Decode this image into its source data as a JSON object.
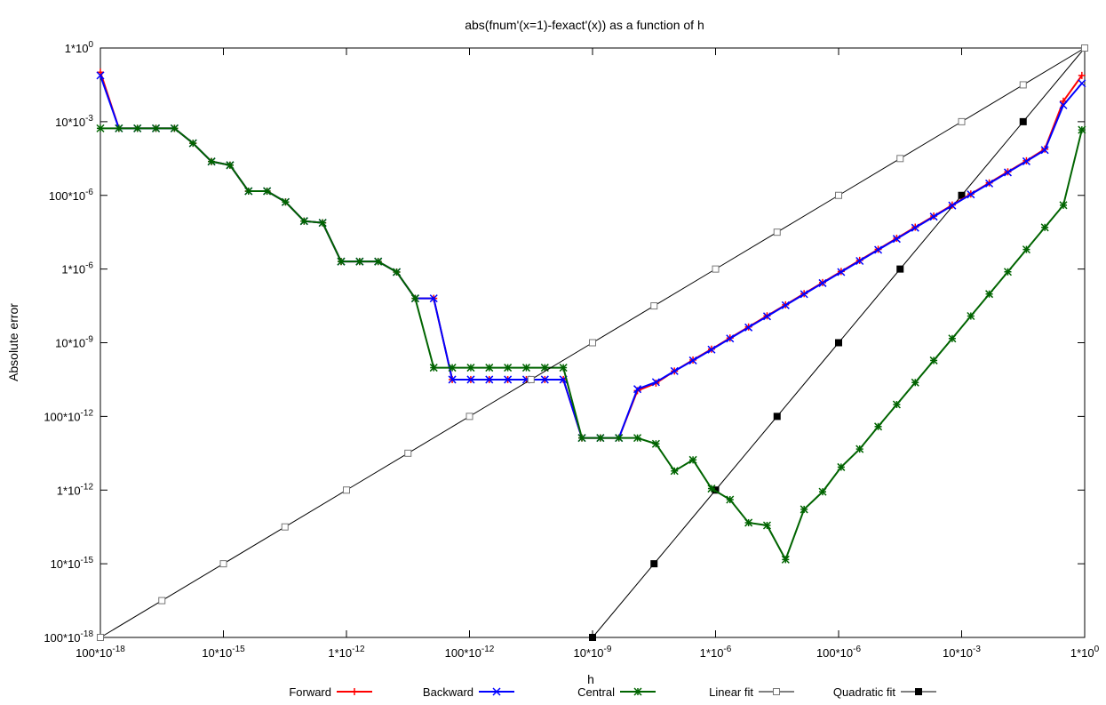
{
  "chart_data": {
    "type": "line",
    "title": "abs(fnum'(x=1)-fexact'(x)) as a function of h",
    "xlabel": "h",
    "ylabel": "Absolute error",
    "xscale": "log",
    "yscale": "log",
    "xlim": [
      1e-16,
      1
    ],
    "ylim": [
      1e-16,
      1
    ],
    "grid": false,
    "legend_position": "bottom",
    "x_tick_labels": [
      "100*10^-18",
      "10*10^-15",
      "1*10^-12",
      "100*10^-12",
      "10*10^-9",
      "1*10^-6",
      "100*10^-6",
      "10*10^-3",
      "1*10^0"
    ],
    "x_tick_values": [
      1e-16,
      1e-14,
      1e-12,
      1e-10,
      1e-08,
      1e-06,
      0.0001,
      0.01,
      1
    ],
    "y_tick_labels": [
      "1*10^0",
      "10*10^-3",
      "100*10^-6",
      "1*10^-6",
      "10*10^-9",
      "100*10^-12",
      "1*10^-12",
      "10*10^-15",
      "100*10^-18"
    ],
    "y_tick_values": [
      1,
      0.01,
      0.0001,
      1e-06,
      1e-08,
      1e-10,
      1e-12,
      1e-14,
      1e-16
    ],
    "series": [
      {
        "name": "Forward",
        "color": "#ff0000",
        "marker": "plus",
        "x": [
          1e-16,
          2e-16,
          4e-16,
          8e-16,
          1.6e-15,
          3.2e-15,
          6.4e-15,
          1.28e-14,
          2.56e-14,
          5.12e-14,
          1.024e-13,
          2.048e-13,
          4.096e-13,
          8.192e-13,
          1.638e-12,
          3.277e-12,
          6.554e-12,
          1.311e-11,
          2.621e-11,
          5.243e-11,
          1.049e-10,
          2.097e-10,
          4.194e-10,
          8.389e-10,
          1.678e-09,
          3.355e-09,
          6.711e-09,
          1.342e-08,
          2.684e-08,
          5.369e-08,
          1.074e-07,
          2.147e-07,
          4.295e-07,
          8.59e-07,
          1.718e-06,
          3.436e-06,
          6.872e-06,
          1.374e-05,
          2.749e-05,
          5.498e-05,
          0.00011,
          0.00022,
          0.00044,
          0.00088,
          0.00176,
          0.00352,
          0.00703,
          0.0141,
          0.0281,
          0.0563,
          0.113,
          0.225,
          0.45,
          0.9
        ],
        "y": [
          0.22,
          0.0066,
          0.0066,
          0.0066,
          0.0066,
          0.0026,
          0.00083,
          0.00066,
          0.00013,
          0.00013,
          6.6e-05,
          2e-05,
          1.8e-05,
          1.6e-06,
          1.6e-06,
          1.6e-06,
          8.3e-07,
          1.6e-07,
          1.6e-07,
          1e-09,
          1e-09,
          1e-09,
          1e-09,
          1e-09,
          1e-09,
          1e-09,
          2.6e-11,
          2.6e-11,
          2.6e-11,
          5e-10,
          8e-10,
          1.7e-09,
          3.4e-09,
          6.7e-09,
          1.34e-08,
          2.68e-08,
          5.37e-08,
          1.07e-07,
          2.15e-07,
          4.29e-07,
          8.59e-07,
          1.72e-06,
          3.43e-06,
          6.86e-06,
          1.37e-05,
          2.74e-05,
          5.47e-05,
          0.000109,
          0.000218,
          0.000435,
          0.00087,
          0.0018,
          0.036,
          0.18
        ]
      },
      {
        "name": "Backward",
        "color": "#0000ff",
        "marker": "cross",
        "x": [
          1e-16,
          2e-16,
          4e-16,
          8e-16,
          1.6e-15,
          3.2e-15,
          6.4e-15,
          1.28e-14,
          2.56e-14,
          5.12e-14,
          1.024e-13,
          2.048e-13,
          4.096e-13,
          8.192e-13,
          1.638e-12,
          3.277e-12,
          6.554e-12,
          1.311e-11,
          2.621e-11,
          5.243e-11,
          1.049e-10,
          2.097e-10,
          4.194e-10,
          8.389e-10,
          1.678e-09,
          3.355e-09,
          6.711e-09,
          1.342e-08,
          2.684e-08,
          5.369e-08,
          1.074e-07,
          2.147e-07,
          4.295e-07,
          8.59e-07,
          1.718e-06,
          3.436e-06,
          6.872e-06,
          1.374e-05,
          2.749e-05,
          5.498e-05,
          0.00011,
          0.00022,
          0.00044,
          0.00088,
          0.00176,
          0.00352,
          0.00703,
          0.0141,
          0.0281,
          0.0563,
          0.113,
          0.225,
          0.45,
          0.9
        ],
        "y": [
          0.18,
          0.0066,
          0.0066,
          0.0066,
          0.0066,
          0.0026,
          0.00083,
          0.00066,
          0.00013,
          0.00013,
          6.6e-05,
          2e-05,
          1.8e-05,
          1.6e-06,
          1.6e-06,
          1.6e-06,
          8.3e-07,
          1.6e-07,
          1.6e-07,
          1e-09,
          1e-09,
          1e-09,
          1e-09,
          1e-09,
          1e-09,
          1e-09,
          2.6e-11,
          2.6e-11,
          2.6e-11,
          5.5e-10,
          8.5e-10,
          1.7e-09,
          3.3e-09,
          6.5e-09,
          1.3e-08,
          2.6e-08,
          5.2e-08,
          1.04e-07,
          2.08e-07,
          4.16e-07,
          8.3e-07,
          1.66e-06,
          3.32e-06,
          6.6e-06,
          1.32e-05,
          2.64e-05,
          5.3e-05,
          0.000106,
          0.00021,
          0.00042,
          0.00084,
          0.0017,
          0.028,
          0.11
        ]
      },
      {
        "name": "Central",
        "color": "#006400",
        "marker": "star",
        "x": [
          1e-16,
          2e-16,
          4e-16,
          8e-16,
          1.6e-15,
          3.2e-15,
          6.4e-15,
          1.28e-14,
          2.56e-14,
          5.12e-14,
          1.024e-13,
          2.048e-13,
          4.096e-13,
          8.192e-13,
          1.638e-12,
          3.277e-12,
          6.554e-12,
          1.311e-11,
          2.621e-11,
          5.243e-11,
          1.049e-10,
          2.097e-10,
          4.194e-10,
          8.389e-10,
          1.678e-09,
          3.355e-09,
          6.711e-09,
          1.342e-08,
          2.684e-08,
          5.369e-08,
          1.074e-07,
          2.147e-07,
          4.295e-07,
          8.59e-07,
          1.718e-06,
          3.436e-06,
          6.872e-06,
          1.374e-05,
          2.749e-05,
          5.498e-05,
          0.00011,
          0.00022,
          0.00044,
          0.00088,
          0.00176,
          0.00352,
          0.00703,
          0.0141,
          0.0281,
          0.0563,
          0.113,
          0.225,
          0.45,
          0.9
        ],
        "y": [
          0.0066,
          0.0066,
          0.0066,
          0.0066,
          0.0066,
          0.0026,
          0.00083,
          0.00066,
          0.00013,
          0.00013,
          6.6e-05,
          2e-05,
          1.8e-05,
          1.6e-06,
          1.6e-06,
          1.6e-06,
          8.3e-07,
          1.6e-07,
          2.1e-09,
          2.1e-09,
          2.1e-09,
          2.1e-09,
          2.1e-09,
          2.1e-09,
          2.1e-09,
          2.1e-09,
          2.6e-11,
          2.6e-11,
          2.6e-11,
          2.6e-11,
          1.8e-11,
          3.3e-12,
          6.6e-12,
          1.1e-12,
          5.5e-13,
          1.3e-13,
          1.1e-13,
          1.3e-14,
          3e-13,
          9e-13,
          4.2e-12,
          1.3e-11,
          5.3e-11,
          2.1e-10,
          8.3e-10,
          3.3e-09,
          1.3e-08,
          5.3e-08,
          2.1e-07,
          8.4e-07,
          3.4e-06,
          1.35e-05,
          5.4e-05,
          0.006
        ]
      },
      {
        "name": "Linear fit",
        "color": "#000000",
        "marker": "open-square",
        "x": [
          1e-16,
          1e-15,
          1e-14,
          1e-13,
          1e-12,
          1e-11,
          1e-10,
          1e-09,
          1e-08,
          1e-07,
          1e-06,
          1e-05,
          0.0001,
          0.001,
          0.01,
          0.1,
          1
        ],
        "y": [
          1e-16,
          1e-15,
          1e-14,
          1e-13,
          1e-12,
          1e-11,
          1e-10,
          1e-09,
          1e-08,
          1e-07,
          1e-06,
          1e-05,
          0.0001,
          0.001,
          0.01,
          0.1,
          1
        ]
      },
      {
        "name": "Quadratic fit",
        "color": "#000000",
        "marker": "filled-square",
        "x": [
          1e-08,
          1e-07,
          1e-06,
          1e-05,
          0.0001,
          0.001,
          0.01,
          0.1,
          1
        ],
        "y": [
          1e-16,
          1e-14,
          1e-12,
          1e-10,
          1e-08,
          1e-06,
          0.0001,
          0.01,
          1
        ]
      }
    ]
  }
}
